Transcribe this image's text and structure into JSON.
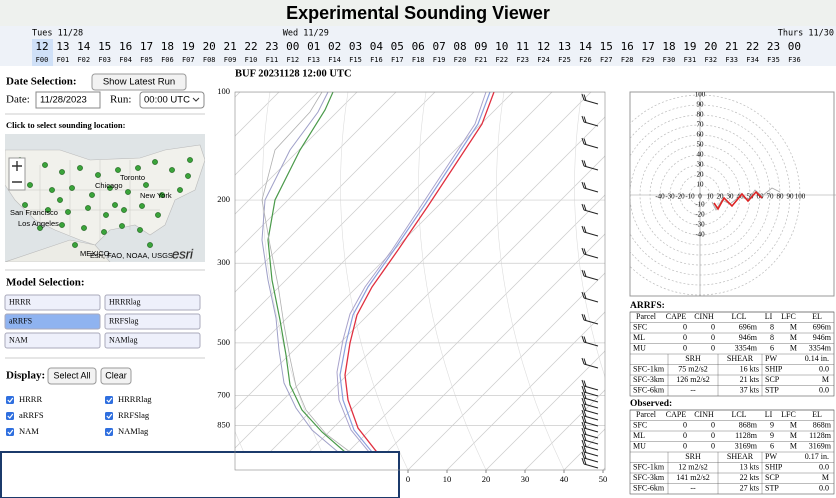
{
  "header": {
    "title": "Experimental Sounding Viewer"
  },
  "timeline": {
    "days": [
      "Tues 11/28",
      "Wed 11/29",
      "Thurs 11/30"
    ],
    "hours": [
      "12",
      "13",
      "14",
      "15",
      "16",
      "17",
      "18",
      "19",
      "20",
      "21",
      "22",
      "23",
      "00",
      "01",
      "02",
      "03",
      "04",
      "05",
      "06",
      "07",
      "08",
      "09",
      "10",
      "11",
      "12",
      "13",
      "14",
      "15",
      "16",
      "17",
      "18",
      "19",
      "20",
      "21",
      "22",
      "23",
      "00"
    ],
    "forecasts": [
      "F00",
      "F01",
      "F02",
      "F03",
      "F04",
      "F05",
      "F06",
      "F07",
      "F08",
      "F09",
      "F10",
      "F11",
      "F12",
      "F13",
      "F14",
      "F15",
      "F16",
      "F17",
      "F18",
      "F19",
      "F20",
      "F21",
      "F22",
      "F23",
      "F24",
      "F25",
      "F26",
      "F27",
      "F28",
      "F29",
      "F30",
      "F31",
      "F32",
      "F33",
      "F34",
      "F35",
      "F36"
    ]
  },
  "left_panel": {
    "date_heading": "Date Selection:",
    "latest_button": "Show Latest Run",
    "date_label": "Date:",
    "date_value": "11/28/2023",
    "run_label": "Run:",
    "run_value": "00:00 UTC",
    "map_prompt": "Click to select sounding location:",
    "map_labels": [
      "Toronto",
      "New York",
      "Chicago",
      "San Francisco",
      "Los Angeles",
      "MEXICO"
    ],
    "map_attribution": "Esri, FAO, NOAA, USGS",
    "map_logo": "esri",
    "model_heading": "Model Selection:",
    "models": [
      "HRRR",
      "HRRRlag",
      "aRRFS",
      "RRFSlag",
      "NAM",
      "NAMlag"
    ],
    "display_heading": "Display:",
    "select_all": "Select All",
    "clear": "Clear",
    "display_models": [
      "HRRR",
      "HRRRlag",
      "aRRFS",
      "RRFSlag",
      "NAM",
      "NAMlag"
    ]
  },
  "skewt": {
    "title": "BUF 20231128 12:00 UTC",
    "pressure_ticks": [
      100,
      200,
      300,
      500,
      700,
      850
    ],
    "x_ticks": [
      0,
      10,
      20,
      30,
      40,
      50
    ]
  },
  "hodograph": {
    "y_ticks": [
      100,
      90,
      80,
      70,
      60,
      50,
      40,
      30,
      20,
      10,
      -10,
      -20,
      -30,
      -40
    ],
    "x_ticks": [
      -40,
      -30,
      -20,
      -10,
      0,
      10,
      20,
      30,
      40,
      50,
      60,
      70,
      80,
      90,
      100
    ]
  },
  "arrfs": {
    "title": "ARRFS:",
    "parcel_header": [
      "Parcel",
      "CAPE",
      "CINH",
      "LCL",
      "LI",
      "LFC",
      "EL"
    ],
    "parcel_rows": [
      [
        "SFC",
        0,
        0,
        "696m",
        8,
        "M",
        "696m"
      ],
      [
        "ML",
        0,
        0,
        "946m",
        8,
        "M",
        "946m"
      ],
      [
        "MU",
        0,
        0,
        "3354m",
        6,
        "M",
        "3354m"
      ]
    ],
    "kin_header": [
      "SRH",
      "SHEAR"
    ],
    "kin_rows": [
      [
        "SFC-1km",
        "75 m2/s2",
        "16 kts"
      ],
      [
        "SFC-3km",
        "126 m2/s2",
        "21 kts"
      ],
      [
        "SFC-6km",
        "--",
        "37 kts"
      ]
    ],
    "index_rows": [
      [
        "PW",
        "0.14 in."
      ],
      [
        "SHIP",
        "0.0"
      ],
      [
        "SCP",
        "M"
      ],
      [
        "STP",
        "0.0"
      ]
    ]
  },
  "observed": {
    "title": "Observed:",
    "parcel_header": [
      "Parcel",
      "CAPE",
      "CINH",
      "LCL",
      "LI",
      "LFC",
      "EL"
    ],
    "parcel_rows": [
      [
        "SFC",
        0,
        0,
        "868m",
        9,
        "M",
        "868m"
      ],
      [
        "ML",
        0,
        0,
        "1128m",
        9,
        "M",
        "1128m"
      ],
      [
        "MU",
        0,
        0,
        "3169m",
        6,
        "M",
        "3169m"
      ]
    ],
    "kin_header": [
      "SRH",
      "SHEAR"
    ],
    "kin_rows": [
      [
        "SFC-1km",
        "12 m2/s2",
        "13 kts"
      ],
      [
        "SFC-3km",
        "141 m2/s2",
        "22 kts"
      ],
      [
        "SFC-6km",
        "--",
        "27 kts"
      ]
    ],
    "index_rows": [
      [
        "PW",
        "0.17 in."
      ],
      [
        "SHIP",
        "0.0"
      ],
      [
        "SCP",
        "M"
      ],
      [
        "STP",
        "0.0"
      ]
    ]
  }
}
